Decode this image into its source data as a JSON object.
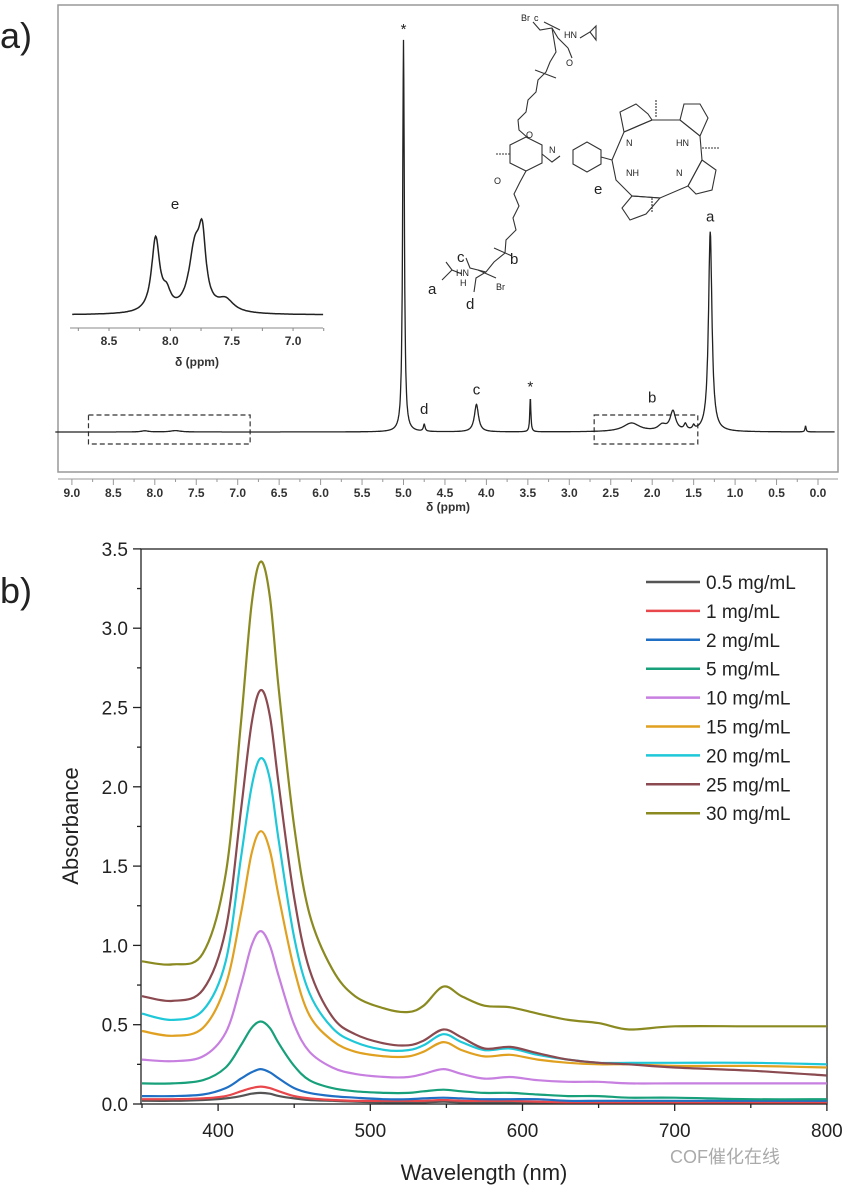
{
  "panels": {
    "a": "a)",
    "b": "b)"
  },
  "chart_data": [
    {
      "type": "line",
      "title": "",
      "xlabel": "δ (ppm)",
      "ylabel": "",
      "xlim": [
        9.2,
        -0.2
      ],
      "x_reversed": true,
      "xticks": [
        "9.0",
        "8.5",
        "8.0",
        "7.5",
        "7.0",
        "6.5",
        "6.0",
        "5.5",
        "5.0",
        "4.5",
        "4.0",
        "3.5",
        "3.0",
        "2.5",
        "2.0",
        "1.5",
        "1.0",
        "0.5",
        "0.0"
      ],
      "grid": false,
      "line_color": "#222222",
      "peaks": [
        {
          "ppm": 8.12,
          "intensity": 0.3,
          "width": 0.05
        },
        {
          "ppm": 7.75,
          "intensity": 0.35,
          "width": 0.07
        },
        {
          "ppm": 5.0,
          "intensity": 100,
          "width": 0.012
        },
        {
          "ppm": 4.75,
          "intensity": 1.8,
          "width": 0.012
        },
        {
          "ppm": 4.12,
          "intensity": 7,
          "width": 0.03
        },
        {
          "ppm": 3.47,
          "intensity": 8.7,
          "width": 0.008
        },
        {
          "ppm": 2.25,
          "intensity": 2.2,
          "width": 0.12
        },
        {
          "ppm": 1.88,
          "intensity": 1.5,
          "width": 0.06
        },
        {
          "ppm": 1.75,
          "intensity": 5,
          "width": 0.04
        },
        {
          "ppm": 1.6,
          "intensity": 1.5,
          "width": 0.02
        },
        {
          "ppm": 1.5,
          "intensity": 1.0,
          "width": 0.015
        },
        {
          "ppm": 1.3,
          "intensity": 51,
          "width": 0.025
        },
        {
          "ppm": 0.15,
          "intensity": 1.5,
          "width": 0.008
        }
      ],
      "annotations": [
        {
          "text": "*",
          "ppm": 5.0
        },
        {
          "text": "d",
          "ppm": 4.75
        },
        {
          "text": "c",
          "ppm": 4.12
        },
        {
          "text": "*",
          "ppm": 3.47
        },
        {
          "text": "b",
          "ppm": 2.0
        },
        {
          "text": "a",
          "ppm": 1.3
        }
      ],
      "highlight_boxes": [
        {
          "from_ppm": 8.8,
          "to_ppm": 6.85
        },
        {
          "from_ppm": 2.7,
          "to_ppm": 1.45
        }
      ],
      "inset": {
        "type": "line",
        "xlabel": "δ (ppm)",
        "xlim": [
          8.8,
          6.75
        ],
        "xticks": [
          "8.5",
          "8.0",
          "7.5",
          "7.0"
        ],
        "label": "e",
        "peaks": [
          {
            "ppm": 8.12,
            "intensity": 72,
            "width": 0.04
          },
          {
            "ppm": 8.03,
            "intensity": 15,
            "width": 0.04
          },
          {
            "ppm": 7.8,
            "intensity": 60,
            "width": 0.06
          },
          {
            "ppm": 7.74,
            "intensity": 60,
            "width": 0.035
          },
          {
            "ppm": 7.55,
            "intensity": 12,
            "width": 0.08
          }
        ]
      },
      "structure_labels": {
        "atoms": [
          "Br",
          "c",
          "HN",
          "O",
          "O",
          "N",
          "N",
          "HN",
          "NH",
          "N",
          "O",
          "HN",
          "H",
          "Br"
        ],
        "assignments": [
          "e",
          "a",
          "c",
          "d",
          "b"
        ]
      }
    },
    {
      "type": "line",
      "title": "",
      "xlabel": "Wavelength (nm)",
      "ylabel": "Absorbance",
      "xlim": [
        350,
        800
      ],
      "ylim": [
        0,
        3.5
      ],
      "xticks": [
        "400",
        "500",
        "600",
        "700",
        "800"
      ],
      "yticks": [
        "0.0",
        "0.5",
        "1.0",
        "1.5",
        "2.0",
        "2.5",
        "3.0",
        "3.5"
      ],
      "grid": false,
      "legend_position": "top-right",
      "x": [
        350,
        370,
        390,
        405,
        415,
        422,
        428,
        434,
        440,
        450,
        460,
        475,
        490,
        510,
        525,
        535,
        548,
        560,
        575,
        592,
        610,
        630,
        650,
        670,
        700,
        750,
        800
      ],
      "series": [
        {
          "name": "0.5 mg/mL",
          "color": "#555555",
          "values": [
            0.02,
            0.02,
            0.025,
            0.035,
            0.05,
            0.065,
            0.07,
            0.065,
            0.05,
            0.035,
            0.025,
            0.02,
            0.015,
            0.01,
            0.01,
            0.01,
            0.015,
            0.01,
            0.01,
            0.01,
            0.01,
            0.01,
            0.01,
            0.01,
            0.01,
            0.01,
            0.01
          ]
        },
        {
          "name": "1 mg/mL",
          "color": "#e8474b",
          "values": [
            0.03,
            0.03,
            0.035,
            0.05,
            0.08,
            0.1,
            0.11,
            0.1,
            0.08,
            0.05,
            0.035,
            0.025,
            0.02,
            0.02,
            0.02,
            0.02,
            0.025,
            0.02,
            0.02,
            0.02,
            0.015,
            0.01,
            0.01,
            0.01,
            0.01,
            0.01,
            0.01
          ]
        },
        {
          "name": "2 mg/mL",
          "color": "#1f6fc5",
          "values": [
            0.05,
            0.05,
            0.06,
            0.1,
            0.16,
            0.2,
            0.22,
            0.2,
            0.16,
            0.1,
            0.07,
            0.05,
            0.04,
            0.03,
            0.03,
            0.035,
            0.04,
            0.035,
            0.03,
            0.03,
            0.03,
            0.02,
            0.02,
            0.02,
            0.02,
            0.02,
            0.02
          ]
        },
        {
          "name": "5 mg/mL",
          "color": "#17a07a",
          "values": [
            0.13,
            0.13,
            0.15,
            0.23,
            0.37,
            0.48,
            0.52,
            0.48,
            0.38,
            0.24,
            0.15,
            0.1,
            0.08,
            0.07,
            0.07,
            0.08,
            0.09,
            0.08,
            0.07,
            0.07,
            0.06,
            0.05,
            0.05,
            0.04,
            0.04,
            0.03,
            0.03
          ]
        },
        {
          "name": "10 mg/mL",
          "color": "#c77fe0",
          "values": [
            0.28,
            0.27,
            0.3,
            0.45,
            0.75,
            1.0,
            1.09,
            1.0,
            0.8,
            0.5,
            0.33,
            0.23,
            0.19,
            0.17,
            0.17,
            0.19,
            0.22,
            0.19,
            0.16,
            0.17,
            0.15,
            0.14,
            0.14,
            0.13,
            0.13,
            0.13,
            0.13
          ]
        },
        {
          "name": "15 mg/mL",
          "color": "#e0a020",
          "values": [
            0.46,
            0.43,
            0.48,
            0.75,
            1.2,
            1.58,
            1.72,
            1.6,
            1.3,
            0.85,
            0.56,
            0.4,
            0.33,
            0.3,
            0.3,
            0.33,
            0.39,
            0.34,
            0.3,
            0.31,
            0.28,
            0.26,
            0.25,
            0.25,
            0.24,
            0.24,
            0.23
          ]
        },
        {
          "name": "20 mg/mL",
          "color": "#1ec8d8",
          "values": [
            0.57,
            0.53,
            0.59,
            0.9,
            1.55,
            2.0,
            2.18,
            2.05,
            1.65,
            1.05,
            0.7,
            0.48,
            0.39,
            0.34,
            0.34,
            0.37,
            0.44,
            0.39,
            0.34,
            0.35,
            0.31,
            0.28,
            0.26,
            0.26,
            0.26,
            0.26,
            0.25
          ]
        },
        {
          "name": "25 mg/mL",
          "color": "#8a4a50",
          "values": [
            0.68,
            0.65,
            0.72,
            1.1,
            1.85,
            2.4,
            2.61,
            2.45,
            2.0,
            1.3,
            0.85,
            0.55,
            0.44,
            0.38,
            0.37,
            0.4,
            0.47,
            0.42,
            0.35,
            0.36,
            0.32,
            0.28,
            0.26,
            0.25,
            0.23,
            0.21,
            0.18
          ]
        },
        {
          "name": "30 mg/mL",
          "color": "#8a8a20",
          "values": [
            0.9,
            0.88,
            0.95,
            1.45,
            2.4,
            3.15,
            3.42,
            3.2,
            2.6,
            1.75,
            1.2,
            0.85,
            0.68,
            0.6,
            0.58,
            0.62,
            0.74,
            0.68,
            0.62,
            0.61,
            0.57,
            0.53,
            0.51,
            0.47,
            0.49,
            0.49,
            0.49
          ]
        }
      ]
    }
  ],
  "watermark": "COF催化在线"
}
